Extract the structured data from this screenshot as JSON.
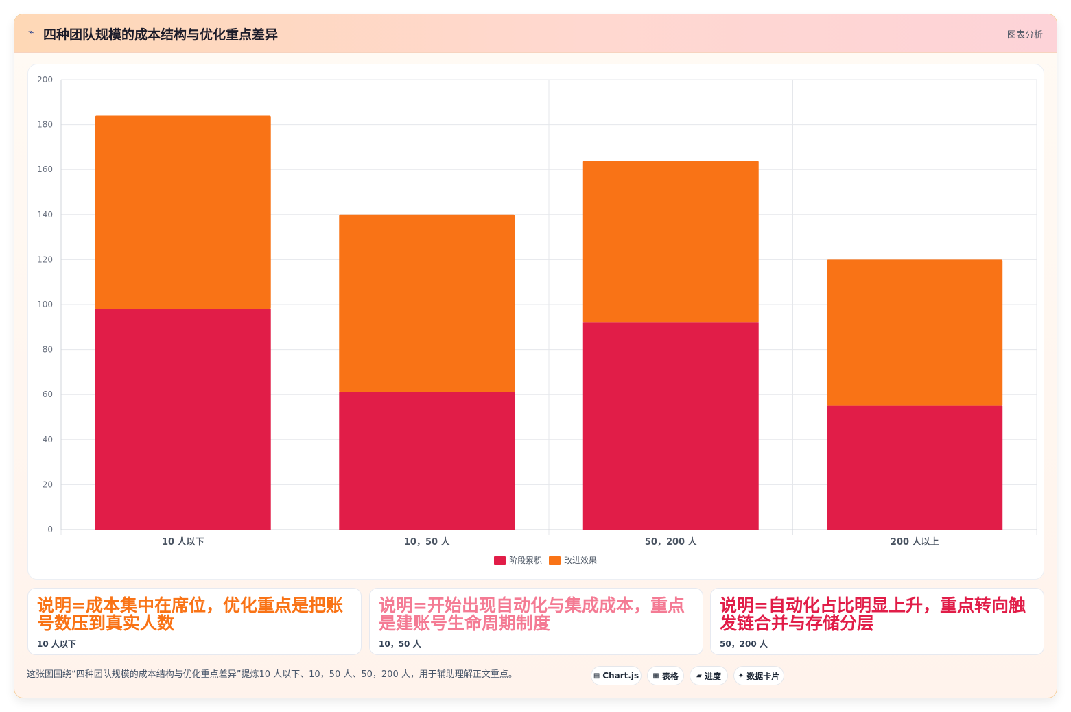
{
  "header": {
    "icon": "chart-line-icon",
    "title": "四种团队规模的成本结构与优化重点差异",
    "right_label": "图表分析"
  },
  "chart_data": {
    "type": "bar",
    "stacked": true,
    "categories": [
      "10 人以下",
      "10，50 人",
      "50，200 人",
      "200 人以上"
    ],
    "series": [
      {
        "name": "阶段累积",
        "color": "#e11d48",
        "values": [
          98,
          61,
          92,
          55
        ]
      },
      {
        "name": "改进效果",
        "color": "#f97316",
        "values": [
          86,
          79,
          72,
          65
        ]
      }
    ],
    "ylim": [
      0,
      200
    ],
    "yticks": [
      0,
      20,
      40,
      60,
      80,
      100,
      120,
      140,
      160,
      180,
      200
    ],
    "grid": true,
    "legend_position": "bottom",
    "title": "",
    "xlabel": "",
    "ylabel": ""
  },
  "notes": [
    {
      "text": "说明=成本集中在席位，优化重点是把账号数压到真实人数",
      "sub": "10 人以下",
      "color": "#f97316"
    },
    {
      "text": "说明=开始出现自动化与集成成本，重点是建账号生命周期制度",
      "sub": "10，50 人",
      "color": "#f47b94"
    },
    {
      "text": "说明=自动化占比明显上升，重点转向触发链合并与存储分层",
      "sub": "50，200 人",
      "color": "#e11d48"
    }
  ],
  "footer": {
    "text": "这张图围绕“四种团队规模的成本结构与优化重点差异”提炼10 人以下、10，50 人、50，200 人，用于辅助理解正文重点。",
    "pills": [
      {
        "icon": "chart-icon",
        "glyph": "▤",
        "label": "Chart.js"
      },
      {
        "icon": "table-icon",
        "glyph": "▦",
        "label": "表格"
      },
      {
        "icon": "progress-icon",
        "glyph": "▰",
        "label": "进度"
      },
      {
        "icon": "card-icon",
        "glyph": "✦",
        "label": "数据卡片"
      }
    ]
  }
}
